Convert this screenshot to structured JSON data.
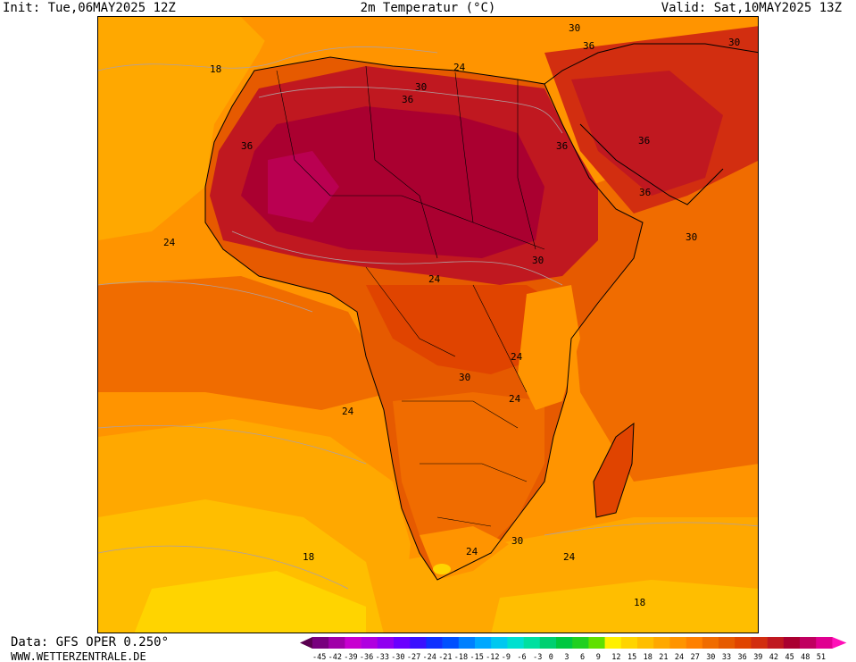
{
  "header": {
    "init": "Init: Tue,06MAY2025 12Z",
    "title": "2m Temperatur (°C)",
    "valid": "Valid: Sat,10MAY2025 13Z"
  },
  "map": {
    "region": "Africa",
    "contour_labels": [
      {
        "text": "18"
      },
      {
        "text": "36"
      },
      {
        "text": "24"
      },
      {
        "text": "30"
      },
      {
        "text": "36"
      },
      {
        "text": "24"
      },
      {
        "text": "30"
      },
      {
        "text": "36"
      },
      {
        "text": "36"
      },
      {
        "text": "36"
      },
      {
        "text": "30"
      },
      {
        "text": "36"
      },
      {
        "text": "30"
      },
      {
        "text": "24"
      },
      {
        "text": "30"
      },
      {
        "text": "24"
      },
      {
        "text": "24"
      },
      {
        "text": "30"
      },
      {
        "text": "24"
      },
      {
        "text": "24"
      },
      {
        "text": "18"
      },
      {
        "text": "24"
      },
      {
        "text": "18"
      },
      {
        "text": "30"
      }
    ]
  },
  "footer": {
    "data_source": "Data: GFS OPER 0.250°",
    "website": "WWW.WETTERZENTRALE.DE"
  },
  "legend": {
    "ticks": [
      "-45",
      "-42",
      "-39",
      "-36",
      "-33",
      "-30",
      "-27",
      "-24",
      "-21",
      "-18",
      "-15",
      "-12",
      "-9",
      "-6",
      "-3",
      "0",
      "3",
      "6",
      "9",
      "12",
      "15",
      "18",
      "21",
      "24",
      "27",
      "30",
      "33",
      "36",
      "39",
      "42",
      "45",
      "48",
      "51"
    ],
    "colors": [
      "#5a0050",
      "#78007e",
      "#a000a8",
      "#c800d0",
      "#b000e0",
      "#9000f0",
      "#6a00ff",
      "#3a10ff",
      "#1030ff",
      "#0050ff",
      "#0080ff",
      "#00a8ff",
      "#00c8f0",
      "#00e0d0",
      "#00e0a0",
      "#00d070",
      "#00c840",
      "#20d020",
      "#60e000",
      "#fff000",
      "#ffd400",
      "#ffbe00",
      "#ffa800",
      "#ff9400",
      "#ff8000",
      "#f06c00",
      "#e65a00",
      "#e04400",
      "#d22e10",
      "#c01820",
      "#aa0030",
      "#c00060",
      "#e00090",
      "#ff10b8"
    ]
  }
}
